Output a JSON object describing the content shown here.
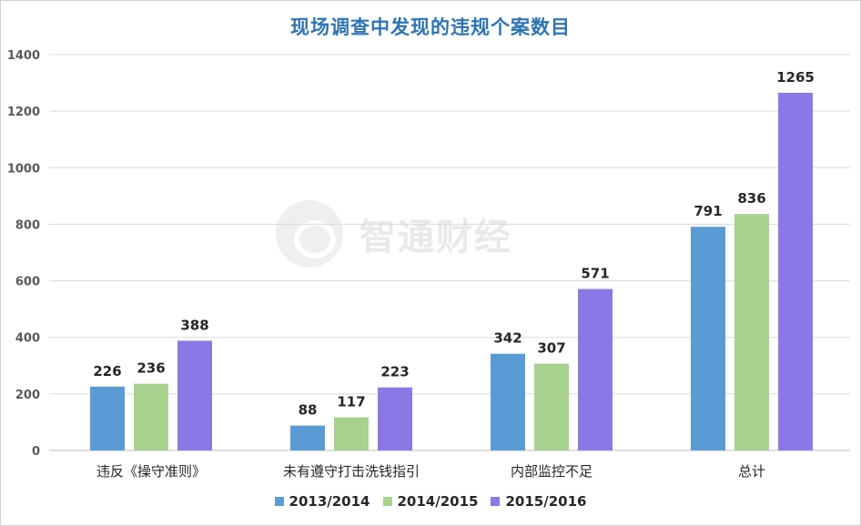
{
  "chart_data": {
    "type": "bar",
    "title": "现场调查中发现的违规个案数目",
    "categories": [
      "违反《操守准则》",
      "未有遵守打击洗钱指引",
      "内部监控不足",
      "总计"
    ],
    "series": [
      {
        "name": "2013/2014",
        "color": "#5b9bd5",
        "values": [
          226,
          88,
          342,
          791
        ]
      },
      {
        "name": "2014/2015",
        "color": "#a9d18e",
        "values": [
          236,
          117,
          307,
          836
        ]
      },
      {
        "name": "2015/2016",
        "color": "#8b78e6",
        "values": [
          388,
          223,
          571,
          1265
        ]
      }
    ],
    "y_ticks": [
      "0",
      "200",
      "400",
      "600",
      "800",
      "1000",
      "1200",
      "1400"
    ],
    "ylim": [
      0,
      1400
    ],
    "grid": true,
    "legend_position": "bottom",
    "data_labels": true
  },
  "watermark": {
    "text": "智通财经"
  }
}
